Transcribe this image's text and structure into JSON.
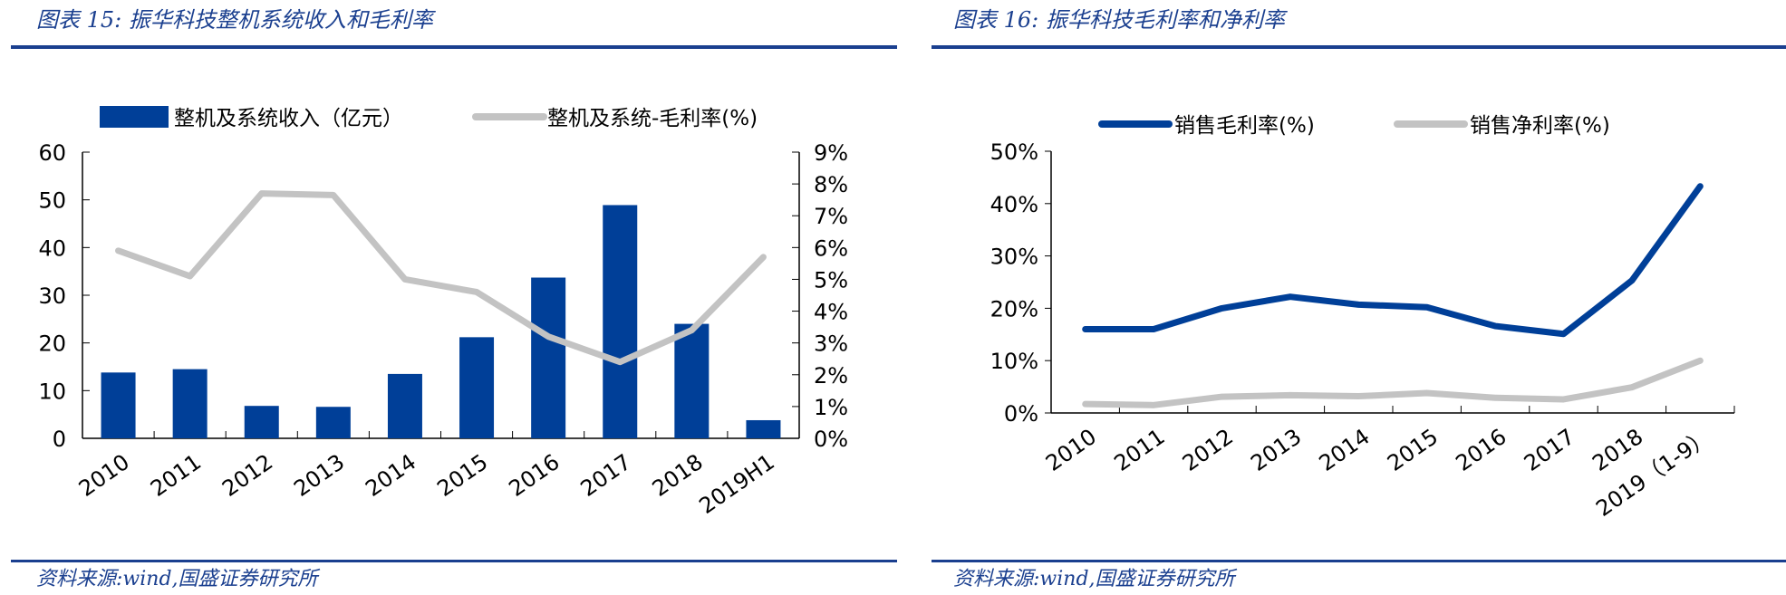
{
  "colors": {
    "primary": "#003f98",
    "secondary": "#c3c3c3",
    "rule": "#1a3f8f"
  },
  "chart_data": [
    {
      "type": "bar+line",
      "title": "图表 15:  振华科技整机系统收入和毛利率",
      "source": "资料来源:wind,国盛证券研究所",
      "categories": [
        "2010",
        "2011",
        "2012",
        "2013",
        "2014",
        "2015",
        "2016",
        "2017",
        "2018",
        "2019H1"
      ],
      "series": [
        {
          "name": "整机及系统收入（亿元）",
          "type": "bar",
          "axis": "left",
          "values": [
            13.8,
            14.5,
            6.8,
            6.6,
            13.5,
            21.2,
            33.7,
            48.9,
            24.0,
            3.8
          ]
        },
        {
          "name": "整机及系统-毛利率(%)",
          "type": "line",
          "axis": "right",
          "values": [
            5.9,
            5.1,
            7.7,
            7.65,
            5.0,
            4.6,
            3.2,
            2.4,
            3.4,
            5.7
          ]
        }
      ],
      "ylim_left": [
        0,
        60
      ],
      "yticks_left": [
        "0",
        "10",
        "20",
        "30",
        "40",
        "50",
        "60"
      ],
      "ylim_right": [
        0,
        9
      ],
      "yticks_right": [
        "0%",
        "1%",
        "2%",
        "3%",
        "4%",
        "5%",
        "6%",
        "7%",
        "8%",
        "9%"
      ],
      "legend": "top",
      "grid": false
    },
    {
      "type": "line",
      "title": "图表 16:  振华科技毛利率和净利率",
      "source": "资料来源:wind,国盛证券研究所",
      "categories": [
        "2010",
        "2011",
        "2012",
        "2013",
        "2014",
        "2015",
        "2016",
        "2017",
        "2018",
        "2019（1-9）"
      ],
      "series": [
        {
          "name": "销售毛利率(%)",
          "values": [
            16.0,
            16.0,
            20.0,
            22.2,
            20.7,
            20.2,
            16.6,
            15.1,
            25.3,
            43.3
          ]
        },
        {
          "name": "销售净利率(%)",
          "values": [
            1.7,
            1.5,
            3.1,
            3.4,
            3.2,
            3.8,
            2.9,
            2.6,
            4.9,
            10.0
          ]
        }
      ],
      "ylim": [
        0,
        50
      ],
      "yticks": [
        "0%",
        "10%",
        "20%",
        "30%",
        "40%",
        "50%"
      ],
      "legend": "top",
      "grid": false
    }
  ]
}
